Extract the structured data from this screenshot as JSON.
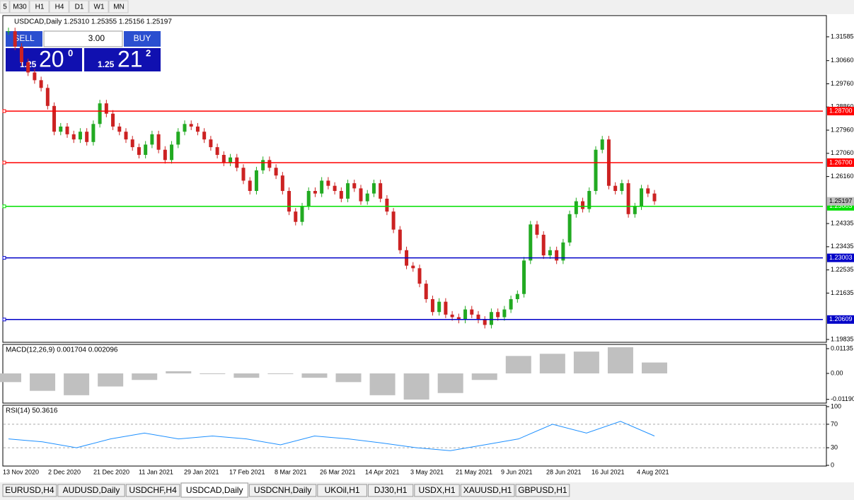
{
  "toolbar": [
    "5",
    "M30",
    "H1",
    "H4",
    "D1",
    "W1",
    "MN"
  ],
  "chart": {
    "header": "USDCAD,Daily 1.25310 1.25355 1.25156 1.25197",
    "trade_panel": {
      "sell": "SELL",
      "buy": "BUY",
      "volume": "3.00",
      "sell_price": {
        "big": "1.25",
        "pips": "20",
        "point": "0"
      },
      "buy_price": {
        "big": "1.25",
        "pips": "21",
        "point": "2"
      }
    },
    "ylim": [
      1.19835,
      1.31585
    ],
    "price_ticks": [
      {
        "value": 1.31585,
        "label": "1.31585"
      },
      {
        "value": 1.3066,
        "label": "1.30660"
      },
      {
        "value": 1.2976,
        "label": "1.29760"
      },
      {
        "value": 1.2886,
        "label": "1.28860"
      },
      {
        "value": 1.2796,
        "label": "1.27960"
      },
      {
        "value": 1.2706,
        "label": "1.27060"
      },
      {
        "value": 1.2616,
        "label": "1.26160"
      },
      {
        "value": 1.24335,
        "label": "1.24335"
      },
      {
        "value": 1.23435,
        "label": "1.23435"
      },
      {
        "value": 1.22535,
        "label": "1.22535"
      },
      {
        "value": 1.21635,
        "label": "1.21635"
      },
      {
        "value": 1.19835,
        "label": "1.19835"
      }
    ],
    "current_price": {
      "value": 1.25197,
      "label": "1.25197"
    },
    "levels": [
      {
        "value": 1.287,
        "label": "1.28700",
        "color": "#ff0000"
      },
      {
        "value": 1.267,
        "label": "1.26700",
        "color": "#ff0000"
      },
      {
        "value": 1.25003,
        "label": "1.25003",
        "color": "#00e000"
      },
      {
        "value": 1.23003,
        "label": "1.23003",
        "color": "#0000c8"
      },
      {
        "value": 1.20609,
        "label": "1.20609",
        "color": "#0000c8"
      }
    ],
    "closes": [
      1.318,
      1.312,
      1.306,
      1.302,
      1.299,
      1.296,
      1.289,
      1.279,
      1.281,
      1.278,
      1.276,
      1.279,
      1.275,
      1.282,
      1.29,
      1.286,
      1.281,
      1.279,
      1.276,
      1.273,
      1.27,
      1.274,
      1.278,
      1.272,
      1.268,
      1.274,
      1.279,
      1.282,
      1.281,
      1.279,
      1.276,
      1.273,
      1.27,
      1.267,
      1.269,
      1.265,
      1.26,
      1.256,
      1.264,
      1.268,
      1.265,
      1.262,
      1.256,
      1.248,
      1.244,
      1.25,
      1.256,
      1.255,
      1.26,
      1.258,
      1.256,
      1.253,
      1.259,
      1.257,
      1.252,
      1.255,
      1.259,
      1.253,
      1.248,
      1.241,
      1.233,
      1.227,
      1.226,
      1.22,
      1.214,
      1.209,
      1.213,
      1.208,
      1.207,
      1.206,
      1.21,
      1.208,
      1.206,
      1.204,
      1.209,
      1.207,
      1.21,
      1.214,
      1.216,
      1.229,
      1.243,
      1.239,
      1.231,
      1.233,
      1.229,
      1.236,
      1.247,
      1.252,
      1.249,
      1.256,
      1.272,
      1.276,
      1.258,
      1.256,
      1.259,
      1.247,
      1.25,
      1.257,
      1.255,
      1.252
    ],
    "dates": [
      "13 Nov 2020",
      "2 Dec 2020",
      "21 Dec 2020",
      "11 Jan 2021",
      "29 Jan 2021",
      "17 Feb 2021",
      "8 Mar 2021",
      "26 Mar 2021",
      "14 Apr 2021",
      "3 May 2021",
      "21 May 2021",
      "9 Jun 2021",
      "28 Jun 2021",
      "16 Jul 2021",
      "4 Aug 2021"
    ]
  },
  "macd": {
    "label": "MACD(12,26,9) 0.001704 0.002096",
    "ticks": [
      {
        "value": 0.01135,
        "label": "0.01135"
      },
      {
        "value": 0,
        "label": "0.00"
      },
      {
        "value": -0.0119,
        "label": "-0.01190"
      }
    ],
    "values": [
      -0.004,
      -0.008,
      -0.01,
      -0.006,
      -0.003,
      0.001,
      0,
      -0.002,
      0,
      -0.002,
      -0.004,
      -0.01,
      -0.012,
      -0.009,
      -0.003,
      0.008,
      0.009,
      0.01,
      0.012,
      0.005
    ]
  },
  "rsi": {
    "label": "RSI(14) 50.3616",
    "ticks": [
      100,
      70,
      30,
      0
    ],
    "values": [
      45,
      40,
      30,
      45,
      55,
      45,
      50,
      45,
      35,
      50,
      45,
      38,
      30,
      25,
      35,
      45,
      70,
      55,
      75,
      50
    ]
  },
  "tabs": [
    "EURUSD,H4",
    "AUDUSD,Daily",
    "USDCHF,H4",
    "USDCAD,Daily",
    "USDCNH,Daily",
    "UKOil,H1",
    "DJ30,H1",
    "USDX,H1",
    "XAUUSD,H1",
    "GBPUSD,H1"
  ],
  "active_tab": 3
}
